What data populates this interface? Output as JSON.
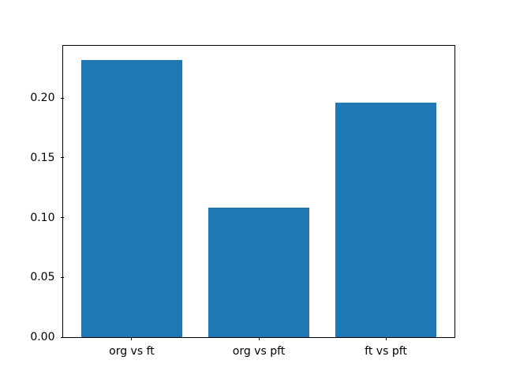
{
  "chart_data": {
    "type": "bar",
    "title": "",
    "xlabel": "",
    "ylabel": "",
    "categories": [
      "org vs ft",
      "org vs pft",
      "ft vs pft"
    ],
    "values": [
      0.232,
      0.108,
      0.196
    ],
    "bar_color": "#1f77b4",
    "ylim": [
      0,
      0.2436
    ],
    "ytick_values": [
      0.0,
      0.05,
      0.1,
      0.15,
      0.2
    ],
    "ytick_labels": [
      "0.00",
      "0.05",
      "0.10",
      "0.15",
      "0.20"
    ],
    "grid": false,
    "legend": null,
    "frame_color": "#000000",
    "background_color": "#ffffff"
  }
}
